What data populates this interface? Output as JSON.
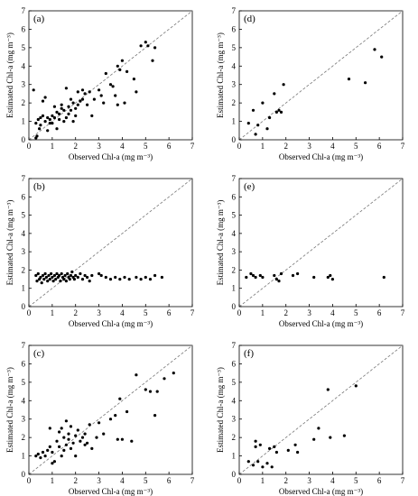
{
  "chart_data": [
    {
      "type": "scatter",
      "panel_label": "(a)",
      "xlabel": "Observed Chl-a (mg m⁻³)",
      "ylabel": "Estimated Chl-a (mg m⁻³)",
      "xlim": [
        0,
        7
      ],
      "ylim": [
        0,
        7
      ],
      "xticks": [
        "0",
        "1",
        "2",
        "3",
        "4",
        "5",
        "6",
        "7"
      ],
      "yticks": [
        "0",
        "1",
        "2",
        "3",
        "4",
        "5",
        "6",
        "7"
      ],
      "reference_line": "1:1 dashed",
      "points": [
        [
          0.2,
          2.7
        ],
        [
          0.3,
          0.1
        ],
        [
          0.35,
          0.2
        ],
        [
          0.3,
          0.9
        ],
        [
          0.4,
          1.1
        ],
        [
          0.45,
          0.6
        ],
        [
          0.5,
          1.2
        ],
        [
          0.5,
          0.8
        ],
        [
          0.6,
          1.3
        ],
        [
          0.6,
          2.1
        ],
        [
          0.7,
          1.0
        ],
        [
          0.7,
          2.3
        ],
        [
          0.8,
          0.5
        ],
        [
          0.8,
          1.2
        ],
        [
          0.9,
          1.1
        ],
        [
          0.9,
          0.9
        ],
        [
          1.0,
          0.9
        ],
        [
          1.0,
          1.3
        ],
        [
          1.1,
          1.2
        ],
        [
          1.1,
          1.8
        ],
        [
          1.2,
          0.6
        ],
        [
          1.2,
          1.5
        ],
        [
          1.3,
          1.4
        ],
        [
          1.3,
          1.1
        ],
        [
          1.4,
          1.7
        ],
        [
          1.4,
          1.9
        ],
        [
          1.5,
          1.0
        ],
        [
          1.5,
          1.6
        ],
        [
          1.6,
          2.8
        ],
        [
          1.6,
          1.2
        ],
        [
          1.7,
          1.4
        ],
        [
          1.7,
          1.8
        ],
        [
          1.8,
          2.2
        ],
        [
          1.8,
          1.6
        ],
        [
          1.9,
          2.0
        ],
        [
          1.9,
          1.0
        ],
        [
          2.0,
          1.3
        ],
        [
          2.0,
          1.7
        ],
        [
          2.1,
          1.9
        ],
        [
          2.1,
          2.6
        ],
        [
          2.2,
          2.1
        ],
        [
          2.3,
          2.2
        ],
        [
          2.3,
          2.7
        ],
        [
          2.4,
          2.5
        ],
        [
          2.5,
          1.9
        ],
        [
          2.6,
          2.6
        ],
        [
          2.7,
          1.3
        ],
        [
          2.8,
          2.2
        ],
        [
          3.0,
          2.7
        ],
        [
          3.1,
          2.4
        ],
        [
          3.2,
          2.0
        ],
        [
          3.3,
          3.6
        ],
        [
          3.5,
          3.0
        ],
        [
          3.6,
          2.9
        ],
        [
          3.7,
          2.4
        ],
        [
          3.8,
          4.0
        ],
        [
          3.8,
          1.9
        ],
        [
          3.9,
          3.8
        ],
        [
          4.0,
          4.3
        ],
        [
          4.1,
          2.0
        ],
        [
          4.2,
          3.7
        ],
        [
          4.5,
          3.3
        ],
        [
          4.6,
          2.6
        ],
        [
          4.8,
          5.1
        ],
        [
          5.0,
          5.3
        ],
        [
          5.1,
          5.1
        ],
        [
          5.3,
          4.3
        ],
        [
          5.4,
          5.0
        ]
      ]
    },
    {
      "type": "scatter",
      "panel_label": "(b)",
      "xlabel": "Observed Chl-a (mg m⁻³)",
      "ylabel": "Estimated Chl-a (mg m⁻³)",
      "xlim": [
        0,
        7
      ],
      "ylim": [
        0,
        7
      ],
      "xticks": [
        "0",
        "1",
        "2",
        "3",
        "4",
        "5",
        "6",
        "7"
      ],
      "yticks": [
        "0",
        "1",
        "2",
        "3",
        "4",
        "5",
        "6",
        "7"
      ],
      "reference_line": "1:1 dashed",
      "points": [
        [
          0.3,
          1.7
        ],
        [
          0.35,
          1.4
        ],
        [
          0.4,
          1.8
        ],
        [
          0.45,
          1.5
        ],
        [
          0.5,
          1.6
        ],
        [
          0.55,
          1.3
        ],
        [
          0.6,
          1.7
        ],
        [
          0.65,
          1.5
        ],
        [
          0.7,
          1.8
        ],
        [
          0.75,
          1.6
        ],
        [
          0.8,
          1.4
        ],
        [
          0.85,
          1.7
        ],
        [
          0.9,
          1.5
        ],
        [
          0.95,
          1.8
        ],
        [
          1.0,
          1.6
        ],
        [
          1.05,
          1.4
        ],
        [
          1.1,
          1.7
        ],
        [
          1.15,
          1.5
        ],
        [
          1.2,
          1.8
        ],
        [
          1.25,
          1.6
        ],
        [
          1.3,
          1.7
        ],
        [
          1.35,
          1.4
        ],
        [
          1.4,
          1.8
        ],
        [
          1.45,
          1.6
        ],
        [
          1.5,
          1.5
        ],
        [
          1.55,
          1.7
        ],
        [
          1.6,
          1.4
        ],
        [
          1.65,
          1.8
        ],
        [
          1.7,
          1.6
        ],
        [
          1.75,
          1.5
        ],
        [
          1.8,
          1.7
        ],
        [
          1.85,
          1.9
        ],
        [
          1.9,
          1.6
        ],
        [
          1.95,
          1.5
        ],
        [
          2.0,
          1.7
        ],
        [
          2.1,
          1.6
        ],
        [
          2.2,
          1.8
        ],
        [
          2.3,
          1.5
        ],
        [
          2.4,
          1.7
        ],
        [
          2.5,
          1.6
        ],
        [
          2.6,
          1.4
        ],
        [
          2.7,
          1.7
        ],
        [
          3.0,
          1.8
        ],
        [
          3.1,
          1.7
        ],
        [
          3.3,
          1.6
        ],
        [
          3.5,
          1.5
        ],
        [
          3.7,
          1.6
        ],
        [
          3.9,
          1.5
        ],
        [
          4.1,
          1.6
        ],
        [
          4.3,
          1.5
        ],
        [
          4.6,
          1.6
        ],
        [
          4.8,
          1.5
        ],
        [
          5.0,
          1.6
        ],
        [
          5.2,
          1.5
        ],
        [
          5.4,
          1.7
        ],
        [
          5.7,
          1.6
        ]
      ]
    },
    {
      "type": "scatter",
      "panel_label": "(c)",
      "xlabel": "Observed Chl-a (mg m⁻³)",
      "ylabel": "Estimated Chl-a (mg m⁻³)",
      "xlim": [
        0,
        7
      ],
      "ylim": [
        0,
        7
      ],
      "xticks": [
        "0",
        "1",
        "2",
        "3",
        "4",
        "5",
        "6",
        "7"
      ],
      "yticks": [
        "0",
        "1",
        "2",
        "3",
        "4",
        "5",
        "6",
        "7"
      ],
      "reference_line": "1:1 dashed",
      "points": [
        [
          0.3,
          1.0
        ],
        [
          0.4,
          1.1
        ],
        [
          0.5,
          0.9
        ],
        [
          0.6,
          1.2
        ],
        [
          0.7,
          1.0
        ],
        [
          0.8,
          1.3
        ],
        [
          0.9,
          1.5
        ],
        [
          0.9,
          2.5
        ],
        [
          1.0,
          0.6
        ],
        [
          1.0,
          1.2
        ],
        [
          1.1,
          0.7
        ],
        [
          1.2,
          1.8
        ],
        [
          1.3,
          1.5
        ],
        [
          1.3,
          2.3
        ],
        [
          1.4,
          1.0
        ],
        [
          1.4,
          2.5
        ],
        [
          1.5,
          2.0
        ],
        [
          1.5,
          1.3
        ],
        [
          1.6,
          2.9
        ],
        [
          1.6,
          1.6
        ],
        [
          1.7,
          2.2
        ],
        [
          1.7,
          1.9
        ],
        [
          1.8,
          1.4
        ],
        [
          1.8,
          2.6
        ],
        [
          1.9,
          1.7
        ],
        [
          2.0,
          2.1
        ],
        [
          2.0,
          1.0
        ],
        [
          2.1,
          2.4
        ],
        [
          2.2,
          1.8
        ],
        [
          2.3,
          2.0
        ],
        [
          2.4,
          2.2
        ],
        [
          2.4,
          1.6
        ],
        [
          2.5,
          1.7
        ],
        [
          2.6,
          2.7
        ],
        [
          2.7,
          1.4
        ],
        [
          2.9,
          2.0
        ],
        [
          3.0,
          2.8
        ],
        [
          3.2,
          2.2
        ],
        [
          3.5,
          3.0
        ],
        [
          3.7,
          3.2
        ],
        [
          3.8,
          1.9
        ],
        [
          3.9,
          4.1
        ],
        [
          4.0,
          1.9
        ],
        [
          4.2,
          3.4
        ],
        [
          4.4,
          1.8
        ],
        [
          4.6,
          5.4
        ],
        [
          5.0,
          4.6
        ],
        [
          5.2,
          4.5
        ],
        [
          5.4,
          3.2
        ],
        [
          5.5,
          4.5
        ],
        [
          5.8,
          5.2
        ],
        [
          6.2,
          5.5
        ]
      ]
    },
    {
      "type": "scatter",
      "panel_label": "(d)",
      "xlabel": "Observed Chl-a (mg m⁻³)",
      "ylabel": "Estimated Chl-a (mg m⁻³)",
      "xlim": [
        0,
        7
      ],
      "ylim": [
        0,
        7
      ],
      "xticks": [
        "0",
        "1",
        "2",
        "3",
        "4",
        "5",
        "6",
        "7"
      ],
      "yticks": [
        "0",
        "1",
        "2",
        "3",
        "4",
        "5",
        "6",
        "7"
      ],
      "reference_line": "1:1 dashed",
      "points": [
        [
          0.4,
          0.9
        ],
        [
          0.6,
          1.6
        ],
        [
          0.7,
          0.3
        ],
        [
          0.8,
          0.8
        ],
        [
          1.0,
          2.0
        ],
        [
          1.2,
          0.6
        ],
        [
          1.3,
          1.2
        ],
        [
          1.5,
          2.5
        ],
        [
          1.6,
          1.5
        ],
        [
          1.7,
          1.6
        ],
        [
          1.8,
          1.5
        ],
        [
          1.9,
          3.0
        ],
        [
          4.7,
          3.3
        ],
        [
          5.4,
          3.1
        ],
        [
          5.8,
          4.9
        ],
        [
          6.1,
          4.5
        ]
      ]
    },
    {
      "type": "scatter",
      "panel_label": "(e)",
      "xlabel": "Observed Chl-a (mg m⁻³)",
      "ylabel": "Estimated Chl-a (mg m⁻³)",
      "xlim": [
        0,
        7
      ],
      "ylim": [
        0,
        7
      ],
      "xticks": [
        "0",
        "1",
        "2",
        "3",
        "4",
        "5",
        "6",
        "7"
      ],
      "yticks": [
        "0",
        "1",
        "2",
        "3",
        "4",
        "5",
        "6",
        "7"
      ],
      "reference_line": "1:1 dashed",
      "points": [
        [
          0.3,
          1.6
        ],
        [
          0.5,
          1.8
        ],
        [
          0.6,
          1.7
        ],
        [
          0.7,
          1.6
        ],
        [
          0.9,
          1.7
        ],
        [
          1.0,
          1.6
        ],
        [
          1.5,
          1.7
        ],
        [
          1.6,
          1.5
        ],
        [
          1.7,
          1.4
        ],
        [
          1.8,
          1.8
        ],
        [
          2.3,
          1.7
        ],
        [
          2.5,
          1.8
        ],
        [
          3.2,
          1.6
        ],
        [
          3.8,
          1.6
        ],
        [
          3.9,
          1.7
        ],
        [
          4.0,
          1.5
        ],
        [
          6.2,
          1.6
        ]
      ]
    },
    {
      "type": "scatter",
      "panel_label": "(f)",
      "xlabel": "Observed Chl-a (mg m⁻³)",
      "ylabel": "Estimated Chl-a (mg m⁻³)",
      "xlim": [
        0,
        7
      ],
      "ylim": [
        0,
        7
      ],
      "xticks": [
        "0",
        "1",
        "2",
        "3",
        "4",
        "5",
        "6",
        "7"
      ],
      "yticks": [
        "0",
        "1",
        "2",
        "3",
        "4",
        "5",
        "6",
        "7"
      ],
      "reference_line": "1:1 dashed",
      "points": [
        [
          0.4,
          0.7
        ],
        [
          0.6,
          0.5
        ],
        [
          0.7,
          1.5
        ],
        [
          0.7,
          1.8
        ],
        [
          0.8,
          0.7
        ],
        [
          0.9,
          1.6
        ],
        [
          1.0,
          0.4
        ],
        [
          1.2,
          0.6
        ],
        [
          1.3,
          1.4
        ],
        [
          1.4,
          0.4
        ],
        [
          1.5,
          1.5
        ],
        [
          1.6,
          1.2
        ],
        [
          2.1,
          1.3
        ],
        [
          2.4,
          1.6
        ],
        [
          2.5,
          1.2
        ],
        [
          3.2,
          1.9
        ],
        [
          3.4,
          2.5
        ],
        [
          3.8,
          4.6
        ],
        [
          3.9,
          2.0
        ],
        [
          4.5,
          2.1
        ],
        [
          5.0,
          4.8
        ]
      ]
    }
  ]
}
